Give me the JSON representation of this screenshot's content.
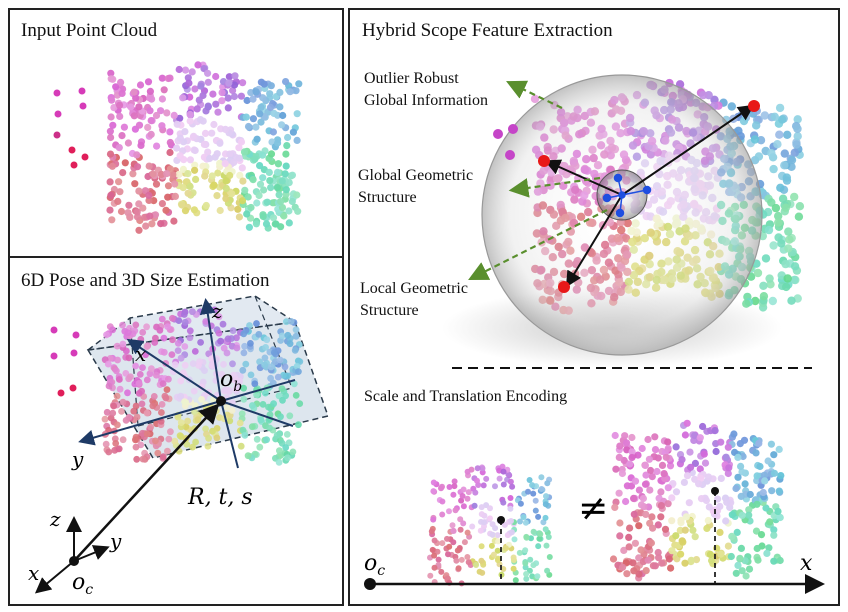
{
  "panels": {
    "input": {
      "title": "Input Point Cloud"
    },
    "pose": {
      "title": "6D Pose and 3D Size Estimation",
      "axis_labels": {
        "z_obj": "z",
        "x_obj": "x",
        "y_obj": "y",
        "z_cam": "z",
        "y_cam": "y",
        "x_cam": "x"
      },
      "origin_obj": "o",
      "origin_obj_sub": "b",
      "origin_cam": "o",
      "origin_cam_sub": "c",
      "transform_label": "R, t, s"
    },
    "hybrid": {
      "title": "Hybrid Scope Feature Extraction",
      "outlier_label_line1": "Outlier Robust",
      "outlier_label_line2": "Global Information",
      "global_label_line1": "Global Geometric",
      "global_label_line2": "Structure",
      "local_label_line1": "Local Geometric",
      "local_label_line2": "Structure"
    },
    "scale": {
      "title": "Scale and Translation Encoding",
      "neq_symbol": "≠",
      "origin": "o",
      "origin_sub": "c",
      "axis_x": "x"
    }
  },
  "colors": {
    "border": "#222222",
    "outlier": "#d63bb8",
    "outlier_red": "#e01e5a",
    "keypoint_red": "#e81818",
    "center_blue": "#1f4fe0",
    "box_fill": "#9fb6cf",
    "axis_navy": "#1e3a66",
    "arrow_green": "#5a8f2e"
  }
}
